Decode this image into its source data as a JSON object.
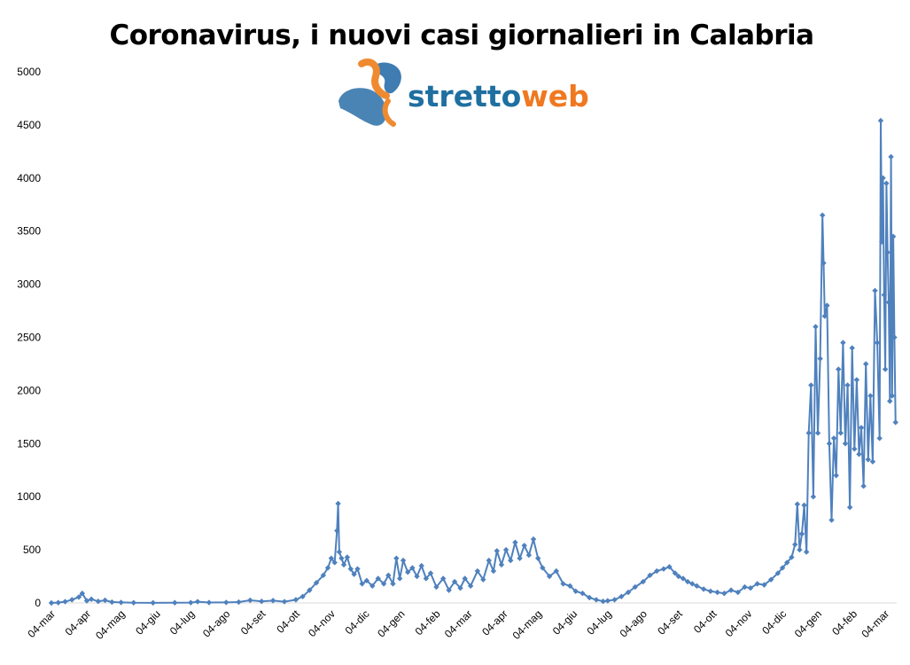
{
  "logo": {
    "part1": "stretto",
    "part2": "web",
    "color1": "#1f6fa0",
    "color2": "#f07820"
  },
  "chart_data": {
    "type": "line",
    "title": "Coronavirus, i nuovi casi giornalieri in Calabria",
    "xlabel": "",
    "ylabel": "",
    "ylim": [
      0,
      5000
    ],
    "yticks": [
      0,
      500,
      1000,
      1500,
      2000,
      2500,
      3000,
      3500,
      4000,
      4500,
      5000
    ],
    "xticks": [
      "04-mar",
      "04-apr",
      "04-mag",
      "04-giu",
      "04-lug",
      "04-ago",
      "04-set",
      "04-ott",
      "04-nov",
      "04-dic",
      "04-gen",
      "04-feb",
      "04-mar",
      "04-apr",
      "04-mag",
      "04-giu",
      "04-lug",
      "04-ago",
      "04-set",
      "04-ott",
      "04-nov",
      "04-dic",
      "04-gen",
      "04-feb",
      "04-mar"
    ],
    "grid": false,
    "marker": "diamond",
    "series": [
      {
        "color": "#4f81bd",
        "points": [
          [
            "04-mar-2020",
            0
          ],
          [
            "10-mar-2020",
            3
          ],
          [
            "16-mar-2020",
            12
          ],
          [
            "22-mar-2020",
            30
          ],
          [
            "28-mar-2020",
            55
          ],
          [
            "31-mar-2020",
            90
          ],
          [
            "04-apr-2020",
            20
          ],
          [
            "08-apr-2020",
            35
          ],
          [
            "14-apr-2020",
            15
          ],
          [
            "20-apr-2020",
            25
          ],
          [
            "26-apr-2020",
            8
          ],
          [
            "04-mag-2020",
            5
          ],
          [
            "15-mag-2020",
            2
          ],
          [
            "01-giu-2020",
            1
          ],
          [
            "20-giu-2020",
            2
          ],
          [
            "04-lug-2020",
            3
          ],
          [
            "10-lug-2020",
            12
          ],
          [
            "20-lug-2020",
            4
          ],
          [
            "04-ago-2020",
            5
          ],
          [
            "15-ago-2020",
            8
          ],
          [
            "25-ago-2020",
            25
          ],
          [
            "04-set-2020",
            15
          ],
          [
            "14-set-2020",
            22
          ],
          [
            "24-set-2020",
            12
          ],
          [
            "04-ott-2020",
            30
          ],
          [
            "10-ott-2020",
            60
          ],
          [
            "16-ott-2020",
            120
          ],
          [
            "22-ott-2020",
            190
          ],
          [
            "28-ott-2020",
            260
          ],
          [
            "01-nov-2020",
            330
          ],
          [
            "04-nov-2020",
            420
          ],
          [
            "07-nov-2020",
            380
          ],
          [
            "09-nov-2020",
            680
          ],
          [
            "10-nov-2020",
            935
          ],
          [
            "11-nov-2020",
            480
          ],
          [
            "13-nov-2020",
            420
          ],
          [
            "15-nov-2020",
            360
          ],
          [
            "18-nov-2020",
            430
          ],
          [
            "21-nov-2020",
            320
          ],
          [
            "24-nov-2020",
            270
          ],
          [
            "27-nov-2020",
            320
          ],
          [
            "01-dic-2020",
            180
          ],
          [
            "05-dic-2020",
            210
          ],
          [
            "10-dic-2020",
            160
          ],
          [
            "15-dic-2020",
            230
          ],
          [
            "20-dic-2020",
            180
          ],
          [
            "24-dic-2020",
            260
          ],
          [
            "28-dic-2020",
            180
          ],
          [
            "31-dic-2020",
            420
          ],
          [
            "03-gen-2021",
            230
          ],
          [
            "06-gen-2021",
            400
          ],
          [
            "10-gen-2021",
            290
          ],
          [
            "14-gen-2021",
            330
          ],
          [
            "18-gen-2021",
            250
          ],
          [
            "22-gen-2021",
            350
          ],
          [
            "26-gen-2021",
            230
          ],
          [
            "30-gen-2021",
            280
          ],
          [
            "04-feb-2021",
            150
          ],
          [
            "10-feb-2021",
            230
          ],
          [
            "15-feb-2021",
            120
          ],
          [
            "20-feb-2021",
            200
          ],
          [
            "25-feb-2021",
            140
          ],
          [
            "01-mar-2021",
            230
          ],
          [
            "06-mar-2021",
            160
          ],
          [
            "12-mar-2021",
            300
          ],
          [
            "17-mar-2021",
            220
          ],
          [
            "22-mar-2021",
            400
          ],
          [
            "26-mar-2021",
            300
          ],
          [
            "29-mar-2021",
            490
          ],
          [
            "02-apr-2021",
            360
          ],
          [
            "06-apr-2021",
            500
          ],
          [
            "10-apr-2021",
            400
          ],
          [
            "14-apr-2021",
            570
          ],
          [
            "18-apr-2021",
            420
          ],
          [
            "22-apr-2021",
            540
          ],
          [
            "26-apr-2021",
            450
          ],
          [
            "30-apr-2021",
            600
          ],
          [
            "04-mag-2021",
            420
          ],
          [
            "08-mag-2021",
            330
          ],
          [
            "14-mag-2021",
            250
          ],
          [
            "20-mag-2021",
            300
          ],
          [
            "26-mag-2021",
            180
          ],
          [
            "01-giu-2021",
            160
          ],
          [
            "06-giu-2021",
            110
          ],
          [
            "12-giu-2021",
            90
          ],
          [
            "18-giu-2021",
            50
          ],
          [
            "24-giu-2021",
            30
          ],
          [
            "30-giu-2021",
            15
          ],
          [
            "04-lug-2021",
            20
          ],
          [
            "10-lug-2021",
            30
          ],
          [
            "16-lug-2021",
            60
          ],
          [
            "22-lug-2021",
            100
          ],
          [
            "28-lug-2021",
            150
          ],
          [
            "04-ago-2021",
            200
          ],
          [
            "10-ago-2021",
            260
          ],
          [
            "16-ago-2021",
            300
          ],
          [
            "22-ago-2021",
            320
          ],
          [
            "27-ago-2021",
            340
          ],
          [
            "01-set-2021",
            280
          ],
          [
            "04-set-2021",
            250
          ],
          [
            "08-set-2021",
            230
          ],
          [
            "12-set-2021",
            200
          ],
          [
            "16-set-2021",
            180
          ],
          [
            "20-set-2021",
            160
          ],
          [
            "26-set-2021",
            130
          ],
          [
            "02-ott-2021",
            110
          ],
          [
            "08-ott-2021",
            100
          ],
          [
            "14-ott-2021",
            90
          ],
          [
            "20-ott-2021",
            120
          ],
          [
            "26-ott-2021",
            100
          ],
          [
            "01-nov-2021",
            150
          ],
          [
            "06-nov-2021",
            140
          ],
          [
            "12-nov-2021",
            180
          ],
          [
            "18-nov-2021",
            170
          ],
          [
            "24-nov-2021",
            220
          ],
          [
            "30-nov-2021",
            280
          ],
          [
            "04-dic-2021",
            330
          ],
          [
            "08-dic-2021",
            380
          ],
          [
            "12-dic-2021",
            430
          ],
          [
            "15-dic-2021",
            550
          ],
          [
            "17-dic-2021",
            930
          ],
          [
            "19-dic-2021",
            500
          ],
          [
            "21-dic-2021",
            650
          ],
          [
            "23-dic-2021",
            920
          ],
          [
            "25-dic-2021",
            480
          ],
          [
            "27-dic-2021",
            1600
          ],
          [
            "29-dic-2021",
            2050
          ],
          [
            "31-dic-2021",
            1000
          ],
          [
            "02-gen-2022",
            2600
          ],
          [
            "04-gen-2022",
            1600
          ],
          [
            "06-gen-2022",
            2300
          ],
          [
            "08-gen-2022",
            3650
          ],
          [
            "09-gen-2022",
            3200
          ],
          [
            "10-gen-2022",
            2700
          ],
          [
            "12-gen-2022",
            2800
          ],
          [
            "14-gen-2022",
            1500
          ],
          [
            "16-gen-2022",
            780
          ],
          [
            "18-gen-2022",
            1550
          ],
          [
            "20-gen-2022",
            1200
          ],
          [
            "22-gen-2022",
            2200
          ],
          [
            "24-gen-2022",
            1600
          ],
          [
            "26-gen-2022",
            2450
          ],
          [
            "28-gen-2022",
            1500
          ],
          [
            "30-gen-2022",
            2050
          ],
          [
            "01-feb-2022",
            900
          ],
          [
            "03-feb-2022",
            2400
          ],
          [
            "05-feb-2022",
            1450
          ],
          [
            "07-feb-2022",
            2100
          ],
          [
            "09-feb-2022",
            1400
          ],
          [
            "11-feb-2022",
            1650
          ],
          [
            "13-feb-2022",
            1100
          ],
          [
            "15-feb-2022",
            2250
          ],
          [
            "17-feb-2022",
            1350
          ],
          [
            "19-feb-2022",
            1950
          ],
          [
            "21-feb-2022",
            1330
          ],
          [
            "23-feb-2022",
            2940
          ],
          [
            "25-feb-2022",
            2450
          ],
          [
            "27-feb-2022",
            1550
          ],
          [
            "28-feb-2022",
            4540
          ],
          [
            "01-mar-2022",
            3400
          ],
          [
            "02-mar-2022",
            4000
          ],
          [
            "03-mar-2022",
            2900
          ],
          [
            "04-mar-2022",
            2200
          ],
          [
            "05-mar-2022",
            3950
          ],
          [
            "06-mar-2022",
            3300
          ],
          [
            "07-mar-2022",
            2830
          ],
          [
            "08-mar-2022",
            1900
          ],
          [
            "09-mar-2022",
            4200
          ],
          [
            "10-mar-2022",
            1950
          ],
          [
            "11-mar-2022",
            3450
          ],
          [
            "12-mar-2022",
            2500
          ],
          [
            "13-mar-2022",
            1700
          ]
        ]
      }
    ]
  }
}
